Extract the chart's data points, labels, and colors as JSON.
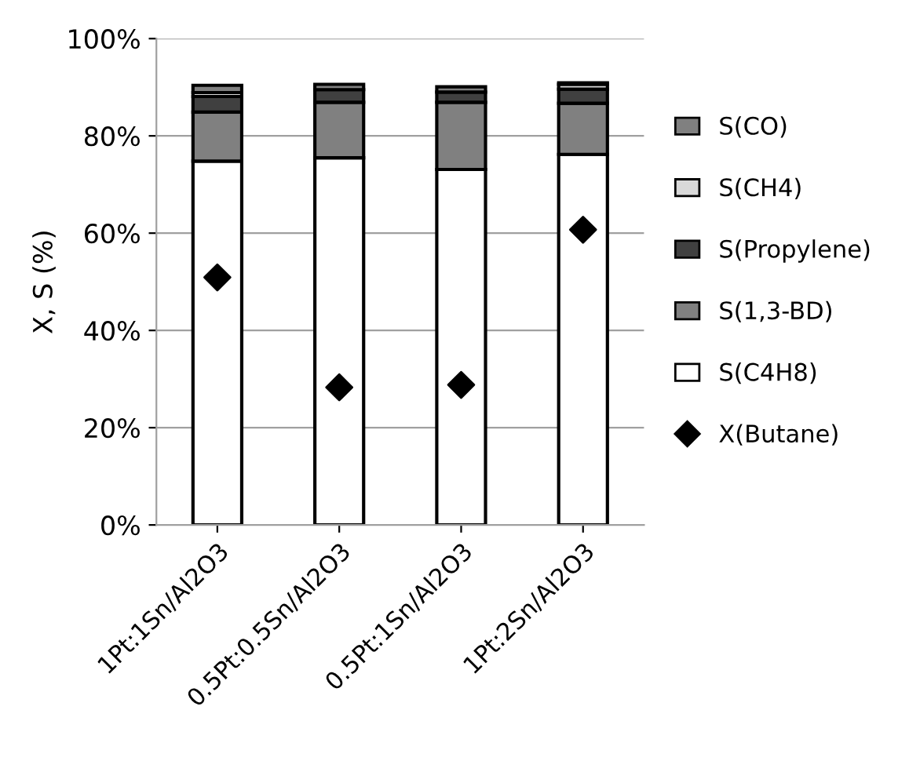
{
  "chart_data": {
    "type": "bar",
    "stacked": true,
    "ylabel": "X, S (%)",
    "categories": [
      "1Pt:1Sn/Al2O3",
      "0.5Pt:0.5Sn/Al2O3",
      "0.5Pt:1Sn/Al2O3",
      "1Pt:2Sn/Al2O3"
    ],
    "series": [
      {
        "name": "S(C4H8)",
        "color": "#ffffff",
        "values": [
          74.8,
          75.5,
          73.1,
          76.2
        ]
      },
      {
        "name": "S(1,3-BD)",
        "color": "#808080",
        "values": [
          10.1,
          11.4,
          13.8,
          10.5
        ]
      },
      {
        "name": "S(Propylene)",
        "color": "#404040",
        "values": [
          3.2,
          2.6,
          2.1,
          2.9
        ]
      },
      {
        "name": "S(CH4)",
        "color": "#d9d9d9",
        "values": [
          0.8,
          null,
          null,
          1.0
        ]
      },
      {
        "name": "S(CO)",
        "color": "#808080",
        "values": [
          1.5,
          1.1,
          1.1,
          0.3
        ]
      },
      {
        "name": "X(Butane)",
        "type": "scatter",
        "color": "#000000",
        "marker": "diamond",
        "x": [
          "1Pt:1Sn/Al2O3",
          "0.5Pt:0.5Sn/Al2O3",
          "0.5Pt:1Sn/Al2O3",
          "1Pt:2Sn/Al2O3"
        ],
        "values": [
          50.9,
          28.3,
          28.8,
          60.7
        ]
      }
    ],
    "ylim": [
      0,
      100
    ],
    "yticks": [
      {
        "value": 0,
        "label": "0%"
      },
      {
        "value": 20,
        "label": "20%"
      },
      {
        "value": 40,
        "label": "40%"
      },
      {
        "value": 60,
        "label": "60%"
      },
      {
        "value": 80,
        "label": "80%"
      },
      {
        "value": 100,
        "label": "100%"
      }
    ],
    "grid": "y",
    "legend": "right"
  }
}
